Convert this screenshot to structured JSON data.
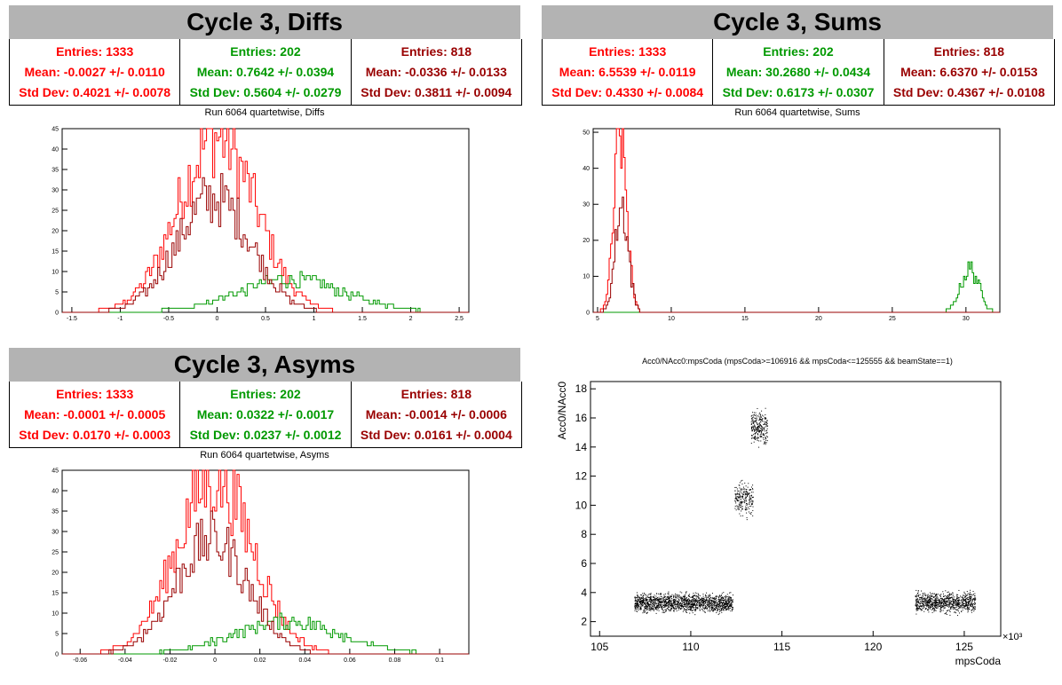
{
  "colors": {
    "red": "#ff0000",
    "green": "#009900",
    "darkred": "#990000",
    "banner": "#b3b3b3"
  },
  "panels": {
    "diffs": {
      "banner": "Cycle 3, Diffs",
      "stats": [
        {
          "entries": "Entries: 1333",
          "mean": "Mean: -0.0027 +/- 0.0110",
          "std": "Std Dev: 0.4021 +/- 0.0078",
          "color": "#ff0000"
        },
        {
          "entries": "Entries: 202",
          "mean": "Mean: 0.7642 +/- 0.0394",
          "std": "Std Dev: 0.5604 +/- 0.0279",
          "color": "#009900"
        },
        {
          "entries": "Entries: 818",
          "mean": "Mean: -0.0336 +/- 0.0133",
          "std": "Std Dev: 0.3811 +/- 0.0094",
          "color": "#990000"
        }
      ],
      "plot_title": "Run 6064 quartetwise, Diffs"
    },
    "sums": {
      "banner": "Cycle 3, Sums",
      "stats": [
        {
          "entries": "Entries: 1333",
          "mean": "Mean: 6.5539 +/- 0.0119",
          "std": "Std Dev: 0.4330 +/- 0.0084",
          "color": "#ff0000"
        },
        {
          "entries": "Entries: 202",
          "mean": "Mean: 30.2680 +/- 0.0434",
          "std": "Std Dev: 0.6173 +/- 0.0307",
          "color": "#009900"
        },
        {
          "entries": "Entries: 818",
          "mean": "Mean: 6.6370 +/- 0.0153",
          "std": "Std Dev: 0.4367 +/- 0.0108",
          "color": "#990000"
        }
      ],
      "plot_title": "Run 6064 quartetwise, Sums"
    },
    "asyms": {
      "banner": "Cycle 3, Asyms",
      "stats": [
        {
          "entries": "Entries: 1333",
          "mean": "Mean: -0.0001 +/- 0.0005",
          "std": "Std Dev: 0.0170 +/- 0.0003",
          "color": "#ff0000"
        },
        {
          "entries": "Entries: 202",
          "mean": "Mean: 0.0322 +/- 0.0017",
          "std": "Std Dev: 0.0237 +/- 0.0012",
          "color": "#009900"
        },
        {
          "entries": "Entries: 818",
          "mean": "Mean: -0.0014 +/- 0.0006",
          "std": "Std Dev: 0.0161 +/- 0.0004",
          "color": "#990000"
        }
      ],
      "plot_title": "Run 6064 quartetwise, Asyms"
    },
    "scatter": {
      "plot_title": "Acc0/NAcc0:mpsCoda (mpsCoda>=106916 && mpsCoda<=125555 && beamState==1)"
    }
  },
  "chart_data": [
    {
      "type": "histogram",
      "name": "diffs",
      "xlim": [
        -1.6,
        2.6
      ],
      "ylim": [
        0,
        45
      ],
      "xticks": [
        -1.5,
        -1,
        -0.5,
        0,
        0.5,
        1,
        1.5,
        2,
        2.5
      ],
      "xtick_labels": [
        "-1.5",
        "-1",
        "-0.5",
        "0",
        "0.5",
        "1",
        "1.5",
        "2",
        "2.5"
      ],
      "yticks": [
        0,
        5,
        10,
        15,
        20,
        25,
        30,
        35,
        40,
        45
      ],
      "series": [
        {
          "color": "#ff0000",
          "entries": 1333,
          "mean": -0.0027,
          "std": 0.4021,
          "peak": 43
        },
        {
          "color": "#009900",
          "entries": 202,
          "mean": 0.7642,
          "std": 0.5604,
          "peak": 8
        },
        {
          "color": "#990000",
          "entries": 818,
          "mean": -0.0336,
          "std": 0.3811,
          "peak": 28
        }
      ]
    },
    {
      "type": "histogram",
      "name": "sums",
      "xlim": [
        4.7,
        32.3
      ],
      "ylim": [
        0,
        51
      ],
      "xticks": [
        5,
        10,
        15,
        20,
        25,
        30
      ],
      "xtick_labels": [
        "5",
        "10",
        "15",
        "20",
        "25",
        "30"
      ],
      "yticks": [
        0,
        10,
        20,
        30,
        40,
        50
      ],
      "series": [
        {
          "color": "#ff0000",
          "entries": 1333,
          "mean": 6.5539,
          "std": 0.433,
          "peak": 49
        },
        {
          "color": "#009900",
          "entries": 202,
          "mean": 30.268,
          "std": 0.6173,
          "peak": 12
        },
        {
          "color": "#990000",
          "entries": 818,
          "mean": 6.637,
          "std": 0.4367,
          "peak": 30
        }
      ]
    },
    {
      "type": "histogram",
      "name": "asyms",
      "xlim": [
        -0.068,
        0.113
      ],
      "ylim": [
        0,
        45
      ],
      "xticks": [
        -0.06,
        -0.04,
        -0.02,
        0,
        0.02,
        0.04,
        0.06,
        0.08,
        0.1
      ],
      "xtick_labels": [
        "-0.06",
        "-0.04",
        "-0.02",
        "0",
        "0.02",
        "0.04",
        "0.06",
        "0.08",
        "0.1"
      ],
      "yticks": [
        0,
        5,
        10,
        15,
        20,
        25,
        30,
        35,
        40,
        45
      ],
      "series": [
        {
          "color": "#ff0000",
          "entries": 1333,
          "mean": -0.0001,
          "std": 0.017,
          "peak": 43
        },
        {
          "color": "#009900",
          "entries": 202,
          "mean": 0.0322,
          "std": 0.0237,
          "peak": 8
        },
        {
          "color": "#990000",
          "entries": 818,
          "mean": -0.0014,
          "std": 0.0161,
          "peak": 28
        }
      ]
    },
    {
      "type": "scatter",
      "name": "acc0-vs-mpscoda",
      "xlabel": "mpsCoda",
      "ylabel": "Acc0/NAcc0",
      "x_multiplier_label": "×10³",
      "xlim": [
        104.5,
        127
      ],
      "ylim": [
        1,
        18.5
      ],
      "xticks": [
        105,
        110,
        115,
        120,
        125
      ],
      "xtick_labels": [
        "105",
        "110",
        "115",
        "120",
        "125"
      ],
      "yticks": [
        2,
        4,
        6,
        8,
        10,
        12,
        14,
        16,
        18
      ],
      "ytick_labels": [
        "2",
        "4",
        "6",
        "8",
        "10",
        "12",
        "14",
        "16",
        "18"
      ],
      "clusters": [
        {
          "x": [
            106.9,
            112.3
          ],
          "y": [
            2.4,
            4.2
          ],
          "density": 1600
        },
        {
          "x": [
            112.4,
            113.4
          ],
          "y": [
            8.8,
            12.2
          ],
          "density": 220
        },
        {
          "x": [
            113.3,
            114.2
          ],
          "y": [
            13.7,
            17.0
          ],
          "density": 260
        },
        {
          "x": [
            122.3,
            125.6
          ],
          "y": [
            2.4,
            4.3
          ],
          "density": 900
        }
      ]
    }
  ]
}
